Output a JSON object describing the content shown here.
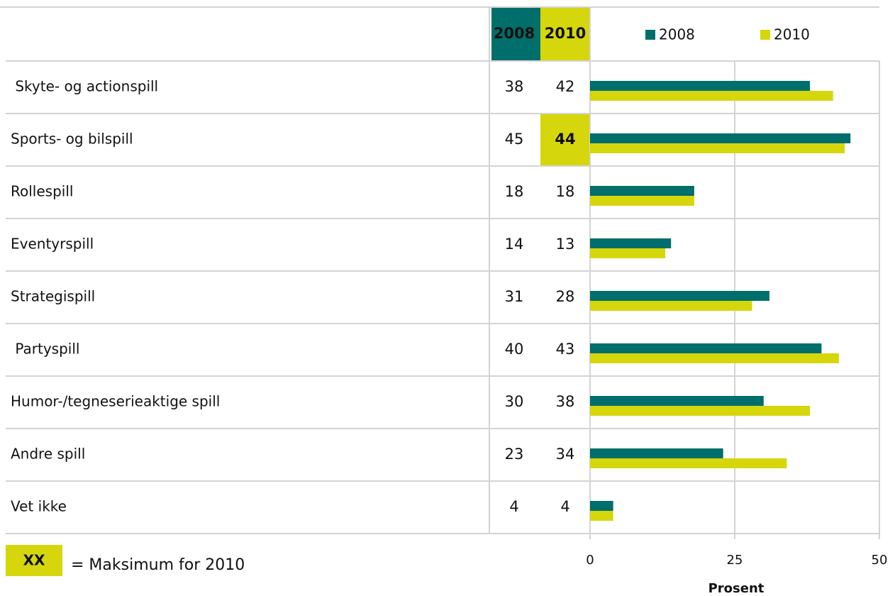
{
  "chart_data": {
    "type": "bar",
    "orientation": "horizontal",
    "categories": [
      " Skyte- og actionspill",
      "Sports- og bilspill",
      "Rollespill",
      "Eventyrspill",
      "Strategispill",
      " Partyspill",
      "Humor-/tegneserieaktige spill",
      "Andre spill",
      "Vet ikke"
    ],
    "series": [
      {
        "name": "2008",
        "color": "#006e6b",
        "values": [
          38,
          45,
          18,
          14,
          31,
          40,
          30,
          23,
          4
        ]
      },
      {
        "name": "2010",
        "color": "#d6d60c",
        "values": [
          42,
          44,
          18,
          13,
          28,
          43,
          38,
          34,
          4
        ]
      }
    ],
    "xlim": [
      0,
      50
    ],
    "xticks": [
      0,
      25,
      50
    ],
    "xlabel": "Prosent",
    "grid": true,
    "note_marker": "XX",
    "note": "= Maksimum for 2010"
  }
}
